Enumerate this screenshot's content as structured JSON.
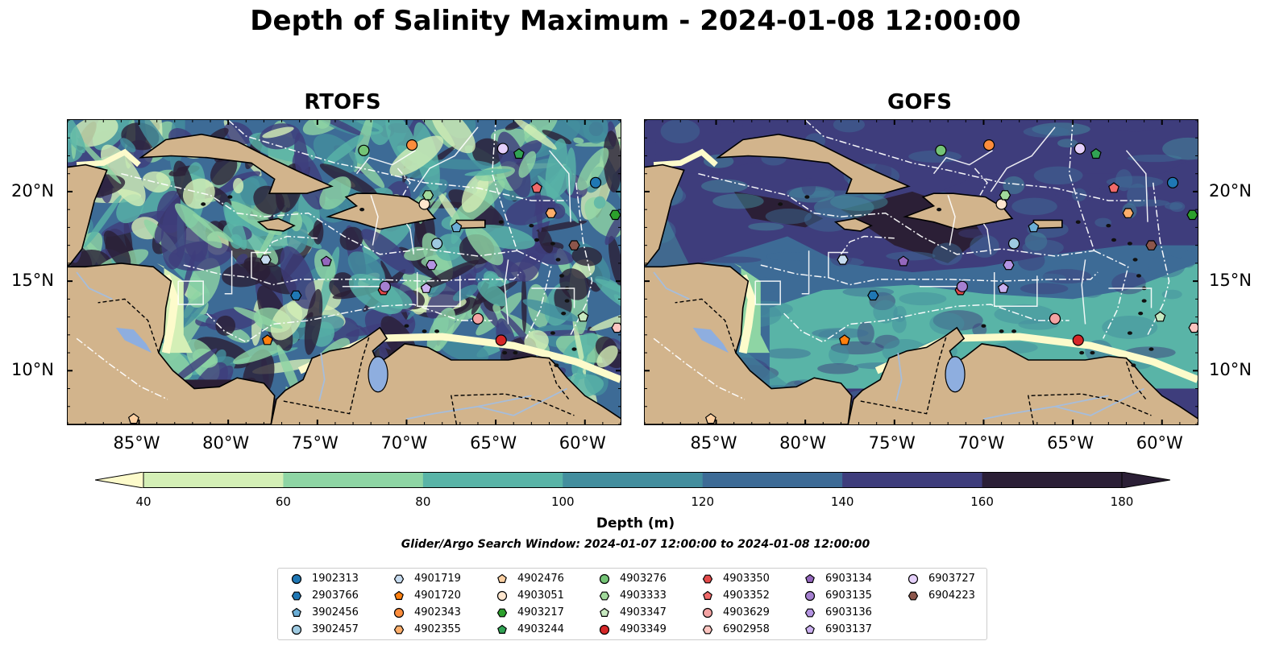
{
  "figure": {
    "title": "Depth of Salinity Maximum - 2024-01-08 12:00:00",
    "subtitle": "Glider/Argo Search Window: 2024-01-07 12:00:00 to 2024-01-08 12:00:00"
  },
  "panels": [
    {
      "title": "RTOFS",
      "style": "rtofs"
    },
    {
      "title": "GOFS",
      "style": "gofs"
    }
  ],
  "map_extent": {
    "lon": [
      -89,
      -58
    ],
    "lat": [
      7,
      24
    ]
  },
  "axes": {
    "x_ticks": [
      {
        "value": -85,
        "label": "85°W"
      },
      {
        "value": -80,
        "label": "80°W"
      },
      {
        "value": -75,
        "label": "75°W"
      },
      {
        "value": -70,
        "label": "70°W"
      },
      {
        "value": -65,
        "label": "65°W"
      },
      {
        "value": -60,
        "label": "60°W"
      }
    ],
    "y_ticks": [
      {
        "value": 20,
        "label": "20°N"
      },
      {
        "value": 15,
        "label": "15°N"
      },
      {
        "value": 10,
        "label": "10°N"
      }
    ]
  },
  "colorbar": {
    "label": "Depth (m)",
    "ticks": [
      "40",
      "60",
      "80",
      "100",
      "120",
      "140",
      "160",
      "180"
    ],
    "colors": [
      "#fdfbcb",
      "#d4efb6",
      "#8ed5a4",
      "#59b4a7",
      "#438e9e",
      "#3d6b96",
      "#3e3d7c",
      "#2b1f36"
    ],
    "extend": "both"
  },
  "colors": {
    "land": "#d2b48c",
    "river": "#a6bddb",
    "lake": "#8eaedf",
    "boundary": "#ffffff"
  },
  "chart_data": {
    "type": "scatter",
    "title": "Depth of Salinity Maximum - 2024-01-08 12:00:00",
    "series": [
      {
        "name": "1902313",
        "marker": "circle",
        "color": "#1f77b4",
        "lon": -59.4,
        "lat": 20.5
      },
      {
        "name": "2903766",
        "marker": "hexagon",
        "color": "#1f77b4",
        "lon": -76.2,
        "lat": 14.2
      },
      {
        "name": "3902456",
        "marker": "pentagon",
        "color": "#6baed6",
        "lon": -67.2,
        "lat": 18.0
      },
      {
        "name": "3902457",
        "marker": "circle",
        "color": "#9ecae1",
        "lon": -68.3,
        "lat": 17.1
      },
      {
        "name": "4901719",
        "marker": "hexagon",
        "color": "#c6dbef",
        "lon": -77.9,
        "lat": 16.2
      },
      {
        "name": "4901720",
        "marker": "pentagon",
        "color": "#ff7f0e",
        "lon": -77.8,
        "lat": 11.7
      },
      {
        "name": "4902343",
        "marker": "circle",
        "color": "#fd8d3c",
        "lon": -69.7,
        "lat": 22.6
      },
      {
        "name": "4902355",
        "marker": "hexagon",
        "color": "#fdae6b",
        "lon": -61.9,
        "lat": 18.8
      },
      {
        "name": "4902476",
        "marker": "pentagon",
        "color": "#fdd0a2",
        "lon": -85.3,
        "lat": 7.3
      },
      {
        "name": "4903051",
        "marker": "circle",
        "color": "#fee6ce",
        "lon": -69.0,
        "lat": 19.3
      },
      {
        "name": "4903217",
        "marker": "hexagon",
        "color": "#2ca02c",
        "lon": -58.3,
        "lat": 18.7
      },
      {
        "name": "4903244",
        "marker": "pentagon",
        "color": "#31a354",
        "lon": -63.7,
        "lat": 22.1
      },
      {
        "name": "4903276",
        "marker": "circle",
        "color": "#74c476",
        "lon": -72.4,
        "lat": 22.3
      },
      {
        "name": "4903333",
        "marker": "hexagon",
        "color": "#a1d99b",
        "lon": -68.8,
        "lat": 19.8
      },
      {
        "name": "4903347",
        "marker": "pentagon",
        "color": "#c7e9c0",
        "lon": -60.1,
        "lat": 13.0
      },
      {
        "name": "4903349",
        "marker": "circle",
        "color": "#d62728",
        "lon": -64.7,
        "lat": 11.7
      },
      {
        "name": "4903350",
        "marker": "hexagon",
        "color": "#e34a4a",
        "lon": -71.3,
        "lat": 14.5
      },
      {
        "name": "4903352",
        "marker": "pentagon",
        "color": "#f06a6a",
        "lon": -62.7,
        "lat": 20.2
      },
      {
        "name": "4903629",
        "marker": "circle",
        "color": "#f4a3a3",
        "lon": -66.0,
        "lat": 12.9
      },
      {
        "name": "6902958",
        "marker": "hexagon",
        "color": "#fcc5c0",
        "lon": -58.2,
        "lat": 12.4
      },
      {
        "name": "6903134",
        "marker": "pentagon",
        "color": "#9467bd",
        "lon": -74.5,
        "lat": 16.1
      },
      {
        "name": "6903135",
        "marker": "circle",
        "color": "#a580d0",
        "lon": -71.2,
        "lat": 14.7
      },
      {
        "name": "6903136",
        "marker": "hexagon",
        "color": "#b494e2",
        "lon": -68.6,
        "lat": 15.9
      },
      {
        "name": "6903137",
        "marker": "pentagon",
        "color": "#cbb0f0",
        "lon": -68.9,
        "lat": 14.6
      },
      {
        "name": "6903727",
        "marker": "circle",
        "color": "#e5d0fb",
        "lon": -64.6,
        "lat": 22.4
      },
      {
        "name": "6904223",
        "marker": "hexagon",
        "color": "#8c564b",
        "lon": -60.6,
        "lat": 17.0
      }
    ]
  }
}
